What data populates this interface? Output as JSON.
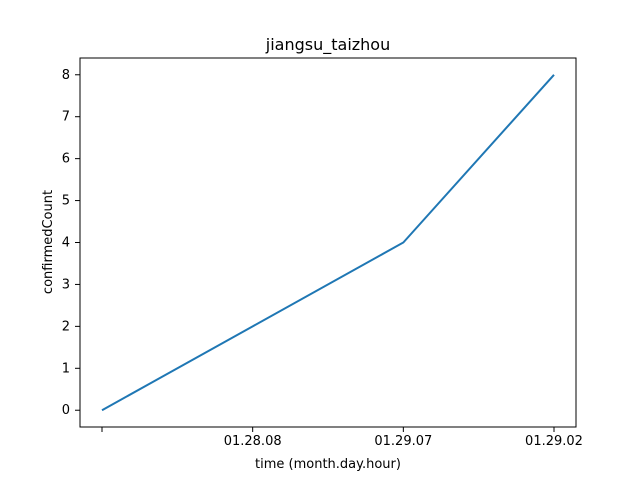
{
  "chart_data": {
    "type": "line",
    "title": "jiangsu_taizhou",
    "xlabel": "time (month.day.hour)",
    "ylabel": "confirmedCount",
    "x": [
      "",
      "01.28.08",
      "01.29.07",
      "01.29.02"
    ],
    "series": [
      {
        "name": "",
        "values": [
          0,
          2,
          4,
          8
        ],
        "color": "#1f77b4"
      }
    ],
    "ylim": [
      -0.4,
      8.4
    ],
    "yticks": [
      0,
      1,
      2,
      3,
      4,
      5,
      6,
      7,
      8
    ],
    "grid": false,
    "legend": "none"
  }
}
